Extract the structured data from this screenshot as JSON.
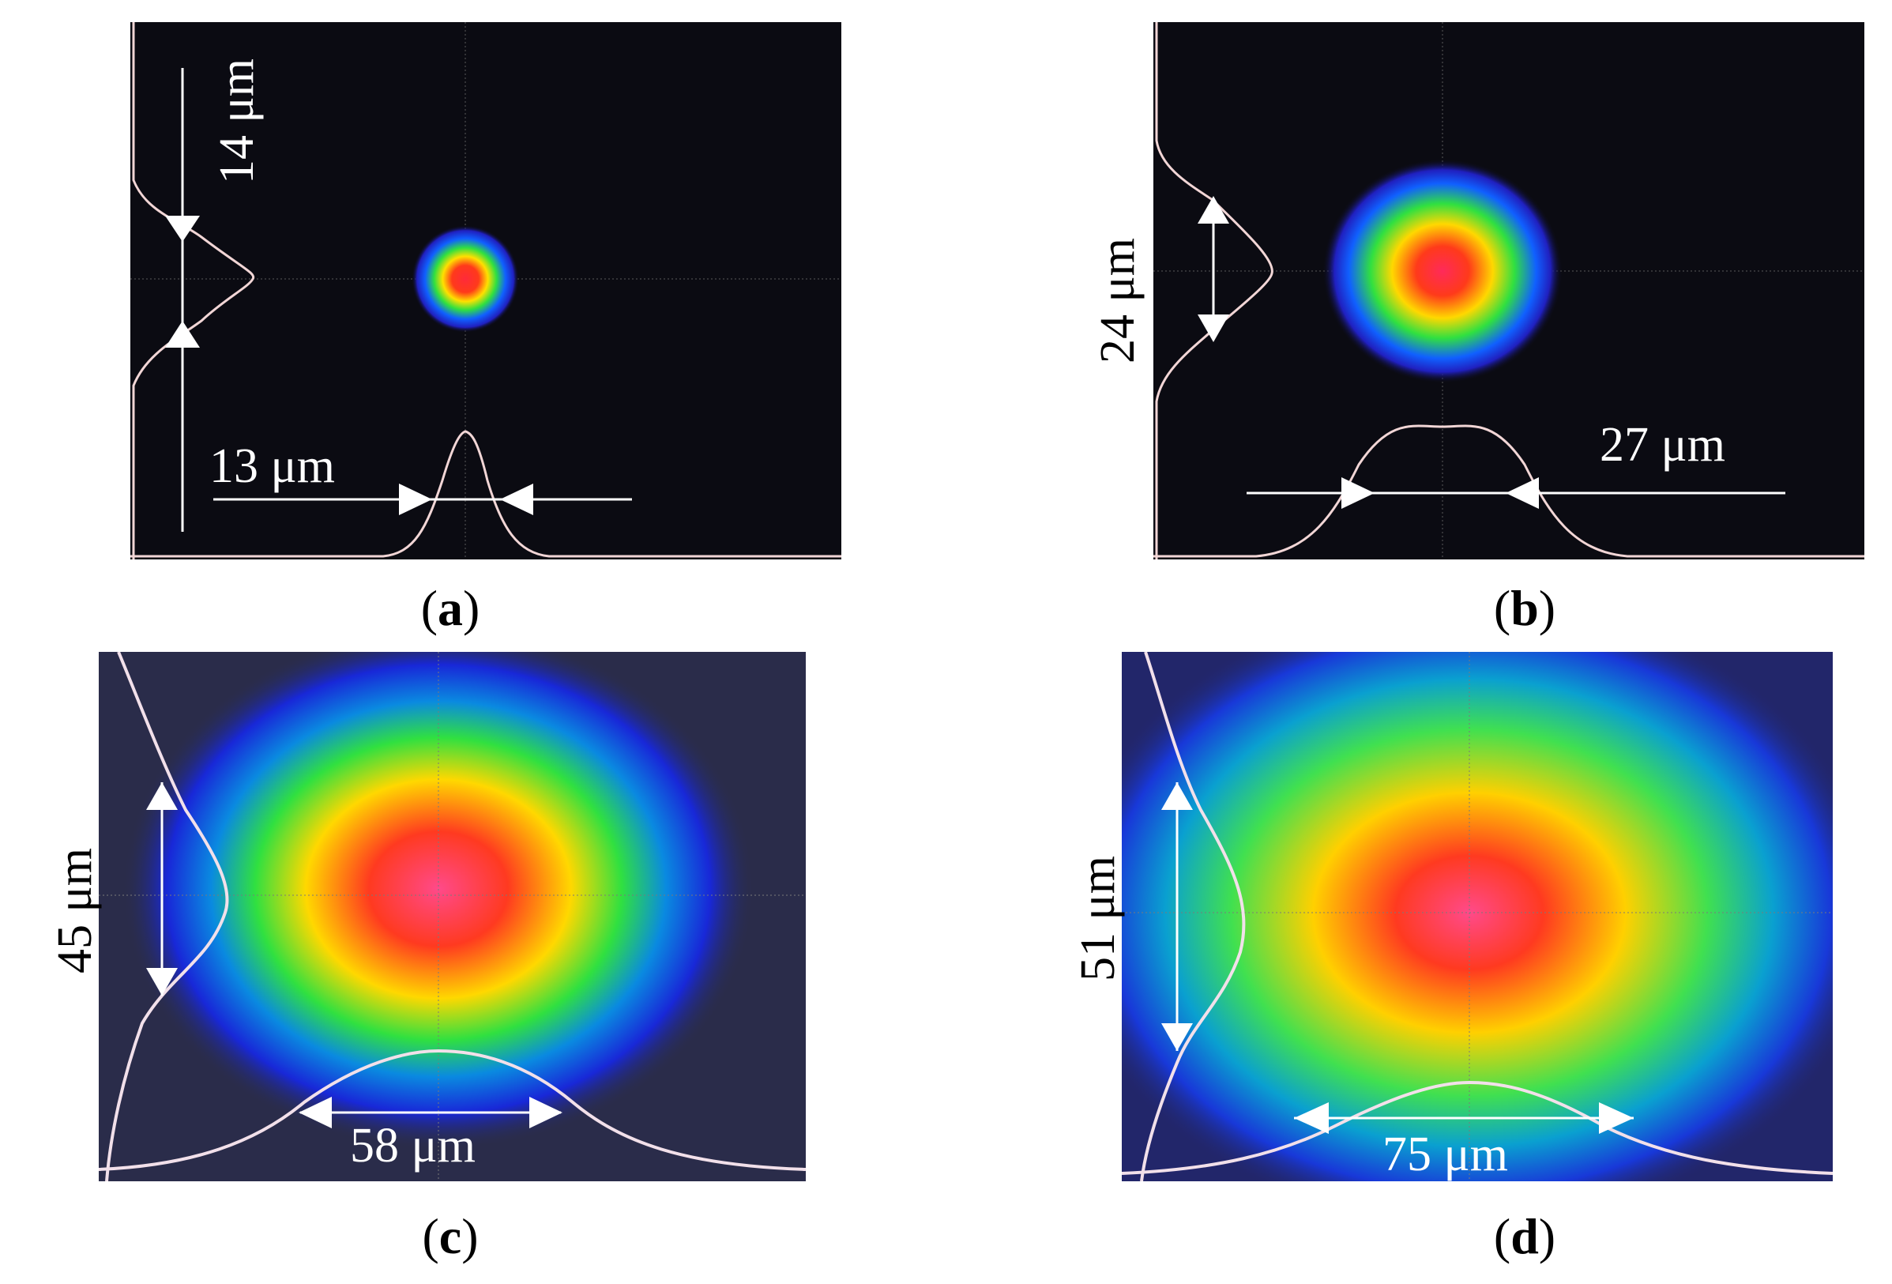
{
  "panels": [
    {
      "id": "a",
      "caption_letter": "a",
      "label_vertical": "14 μm",
      "label_horizontal": "13 μm",
      "beam_width_um": 13,
      "beam_height_um": 14,
      "background": "#0b0b12"
    },
    {
      "id": "b",
      "caption_letter": "b",
      "label_vertical": "24 μm",
      "label_horizontal": "27 μm",
      "beam_width_um": 27,
      "beam_height_um": 24,
      "background": "#0b0b12"
    },
    {
      "id": "c",
      "caption_letter": "c",
      "label_vertical": "45 μm",
      "label_horizontal": "58 μm",
      "beam_width_um": 58,
      "beam_height_um": 45,
      "background": "#2a2c4a"
    },
    {
      "id": "d",
      "caption_letter": "d",
      "label_vertical": "51 μm",
      "label_horizontal": "75 μm",
      "beam_width_um": 75,
      "beam_height_um": 51,
      "background": "#22266a"
    }
  ],
  "colors": {
    "profile": "#f2d6d6",
    "arrow": "#ffffff",
    "crosshair": "#6a6a6a"
  }
}
